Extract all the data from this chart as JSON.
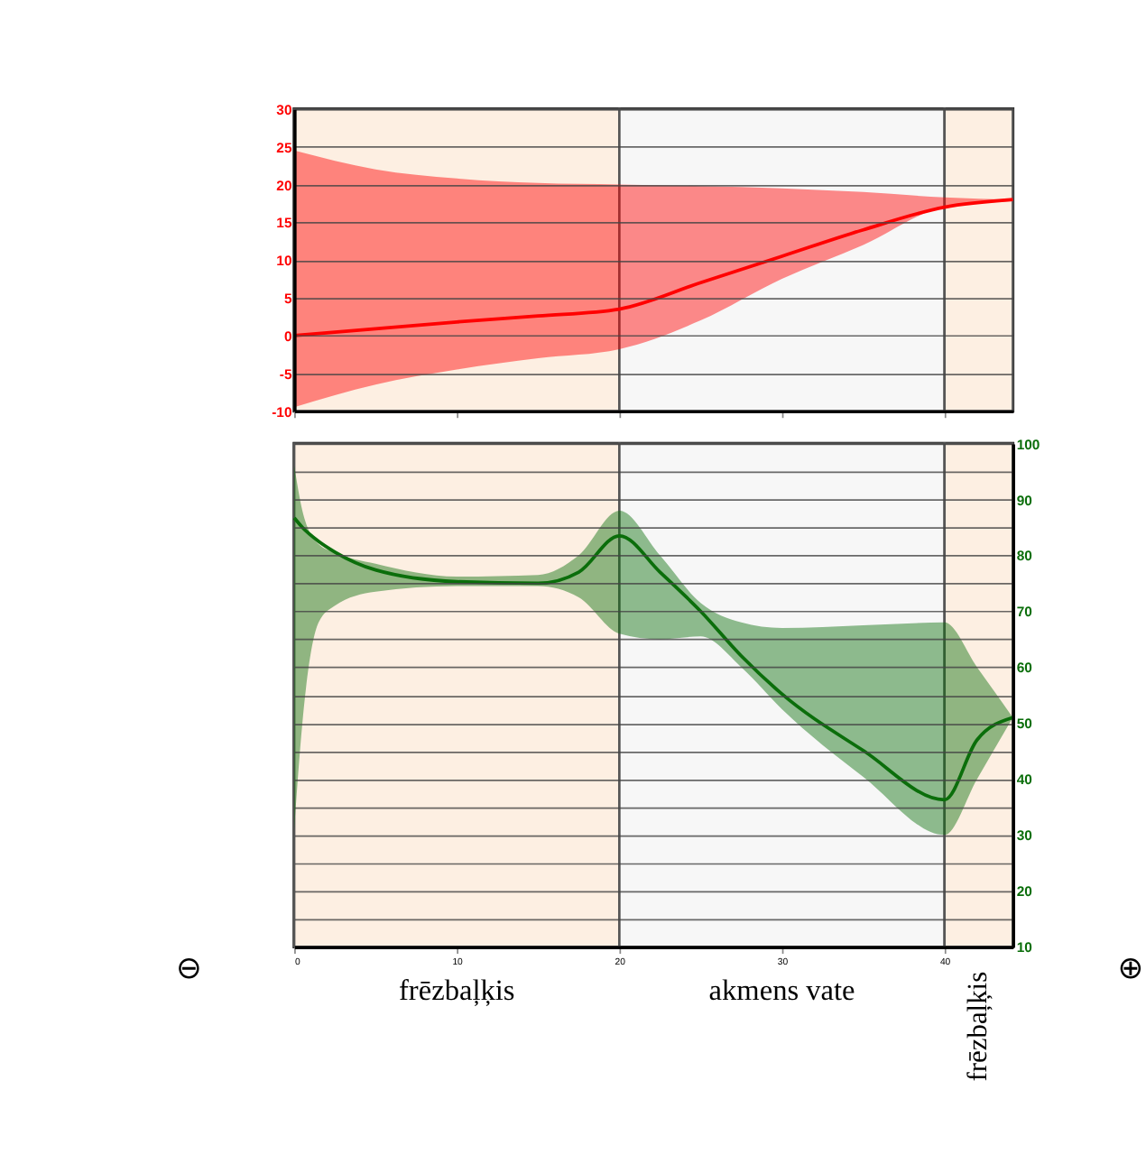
{
  "chart_data": [
    {
      "type": "line",
      "xlim": [
        0,
        44.2
      ],
      "xticks": [
        0,
        10,
        20,
        30,
        40
      ],
      "ylim": [
        -10,
        30
      ],
      "yticks": [
        -10,
        -5,
        0,
        5,
        10,
        15,
        20,
        25,
        30
      ],
      "grid": "y",
      "tick_labels": "y",
      "bands": [
        {
          "axis": "x",
          "from": 0,
          "to": 20,
          "label": null,
          "color": "#fdefe2"
        },
        {
          "axis": "x",
          "from": 20,
          "to": 40,
          "label": null,
          "color": "#f7f7f7"
        },
        {
          "axis": "x",
          "from": 40,
          "to": 44.2,
          "label": null,
          "color": "#fdefe2"
        }
      ],
      "series": [
        {
          "color": "#ff0000",
          "x": [
            0,
            5,
            10,
            15,
            20,
            25,
            30,
            35,
            40,
            44.2
          ],
          "values": [
            0,
            0.9,
            1.8,
            2.6,
            3.5,
            7,
            10.5,
            14,
            17,
            18
          ],
          "lower": [
            -9.5,
            -6.5,
            -4.5,
            -3,
            -1.8,
            2,
            7.5,
            12,
            17,
            17.8
          ],
          "upper": [
            24.5,
            22,
            20.8,
            20.2,
            20,
            19.8,
            19.5,
            19,
            18.3,
            18
          ]
        }
      ]
    },
    {
      "type": "line",
      "xlim": [
        0,
        44.2
      ],
      "xticks": [
        0,
        10,
        20,
        30,
        40
      ],
      "y2lim": [
        10,
        100
      ],
      "y2ticks": [
        10,
        {
          "value": 15,
          "label": null
        },
        20,
        {
          "value": 25,
          "label": null
        },
        30,
        {
          "value": 35,
          "label": null
        },
        40,
        {
          "value": 45,
          "label": null
        },
        50,
        {
          "value": 55,
          "label": null
        },
        60,
        {
          "value": 65,
          "label": null
        },
        70,
        {
          "value": 75,
          "label": null
        },
        80,
        {
          "value": 85,
          "label": null
        },
        90,
        {
          "value": 95,
          "label": null
        },
        100
      ],
      "grid": "y",
      "bands": [
        {
          "axis": "x",
          "from": 0,
          "to": 20,
          "label": "frēzbaļķis",
          "color": "#fdefe2"
        },
        {
          "axis": "x",
          "from": 20,
          "to": 40,
          "label": "akmens vate",
          "color": "#f7f7f7"
        },
        {
          "axis": "x",
          "from": 40,
          "to": 44.2,
          "label": "frēzbaļķis",
          "color": "#fdefe2"
        }
      ],
      "annotations": [
        "⊖",
        "⊕"
      ],
      "series": [
        {
          "color": "#0b6e0b",
          "axis": "y2",
          "x": [
            0,
            0.5,
            1.5,
            2.5,
            5,
            10,
            15,
            17.5,
            20,
            22.5,
            25,
            27.5,
            30,
            35,
            40,
            42,
            44.2
          ],
          "values": [
            86.7,
            85,
            82.5,
            80.6,
            77.4,
            75.3,
            75,
            77,
            83.5,
            77,
            70,
            62,
            55.2,
            45.1,
            36.3,
            47,
            51
          ],
          "lower": [
            31,
            50,
            68,
            71,
            73.5,
            74.5,
            74.5,
            72.5,
            66,
            65,
            65.5,
            60,
            52.5,
            40.4,
            30,
            40,
            51
          ],
          "upper": [
            96,
            88,
            82,
            80.5,
            78.5,
            76.2,
            76.5,
            80,
            88,
            80,
            71.5,
            68,
            67,
            67.5,
            68,
            60,
            51
          ]
        }
      ]
    }
  ]
}
